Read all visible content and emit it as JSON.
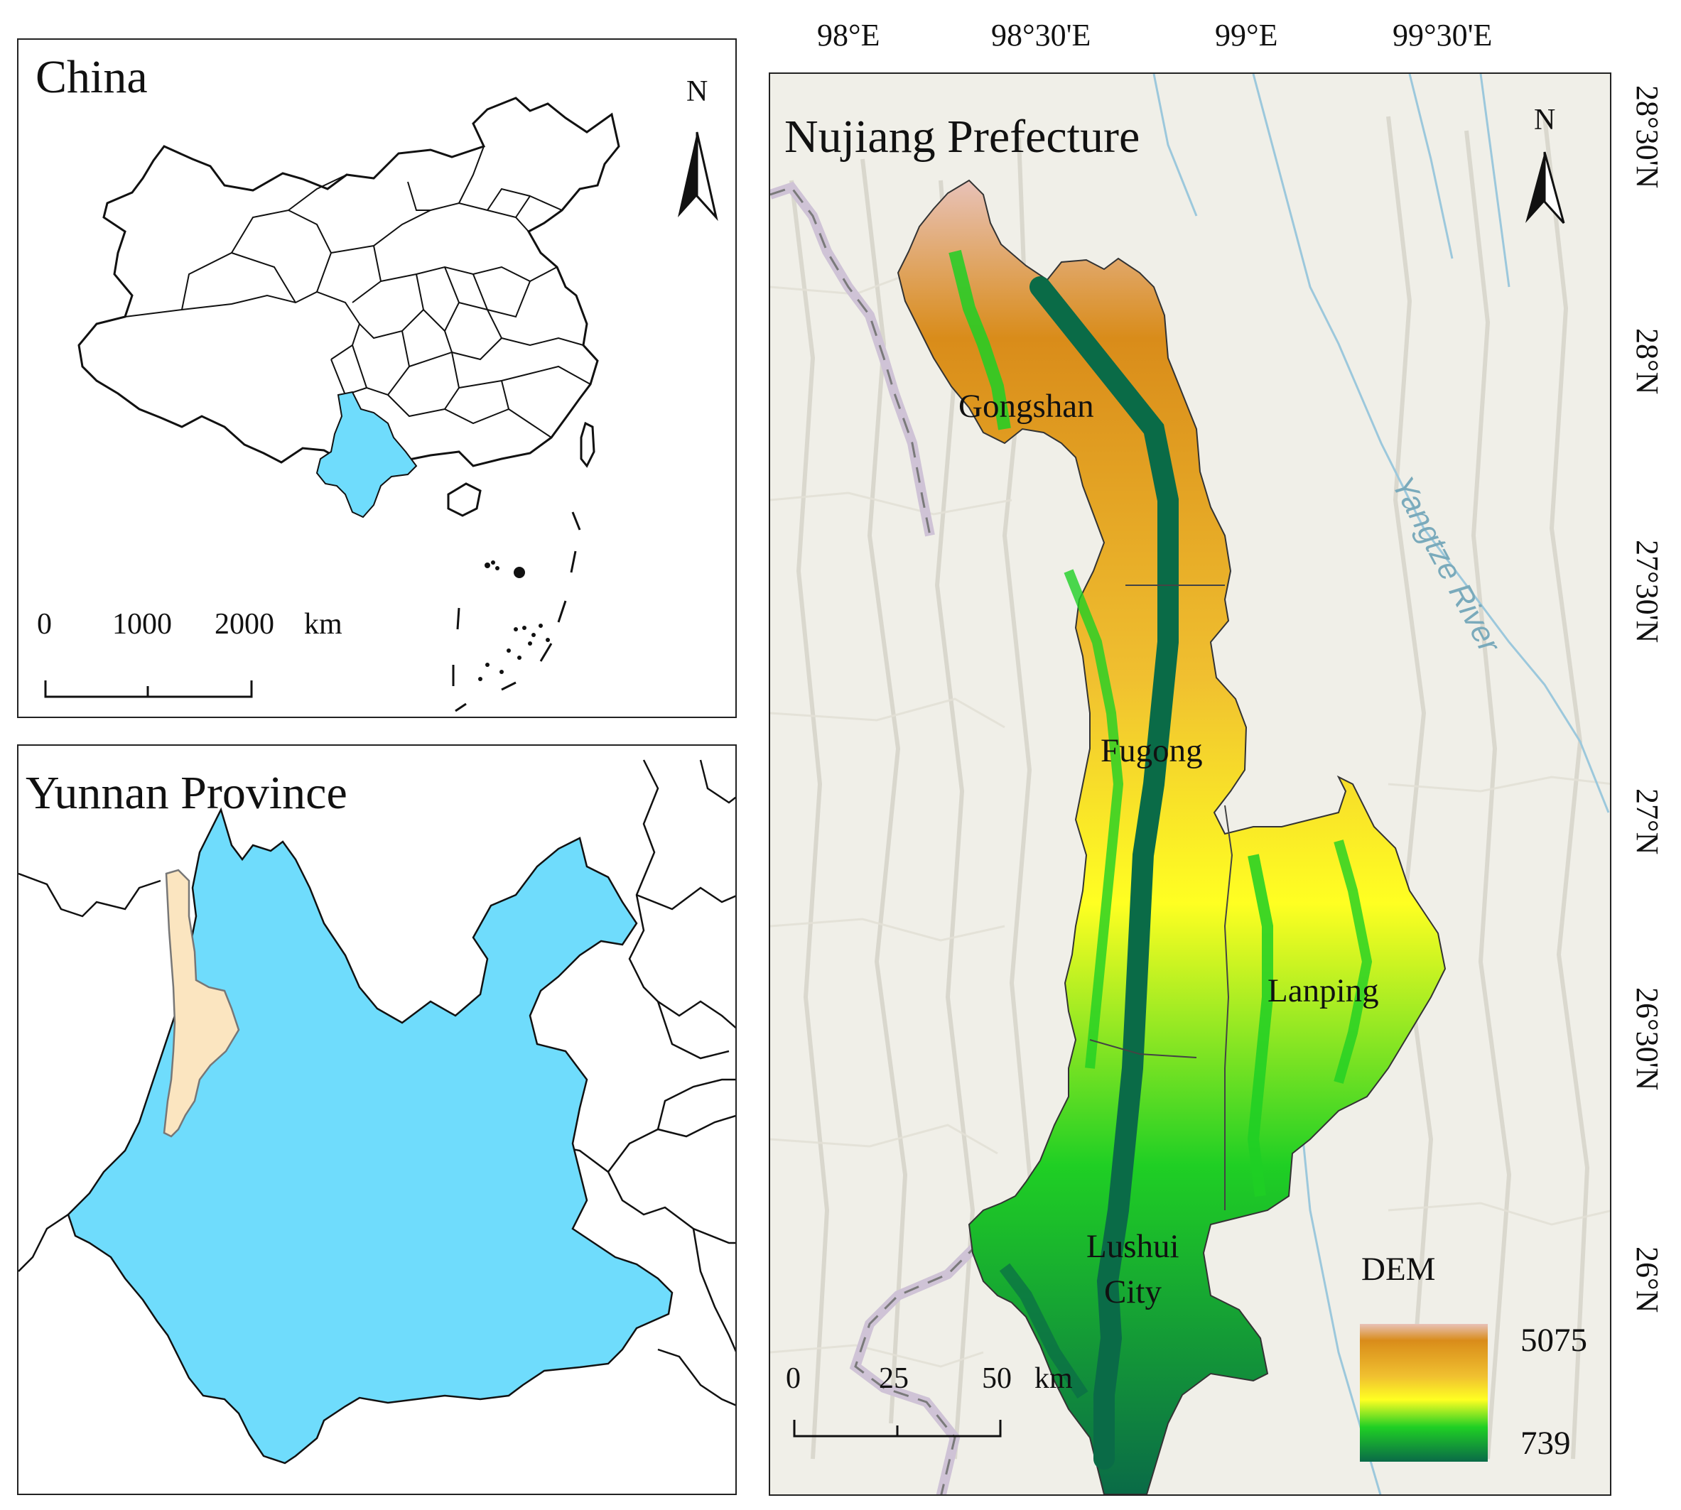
{
  "china": {
    "title": "China",
    "north": "N",
    "scale_labels": [
      "0",
      "1000",
      "2000",
      "km"
    ]
  },
  "yunnan": {
    "title": "Yunnan Province"
  },
  "nujiang": {
    "title": "Nujiang Prefecture",
    "north": "N",
    "counties": [
      "Gongshan",
      "Fugong",
      "Lanping",
      "Lushui",
      "City"
    ],
    "river": "Yangtze River",
    "scale_labels": [
      "0",
      "25",
      "50",
      "km"
    ],
    "legend": {
      "title": "DEM",
      "max": "5075",
      "min": "739"
    },
    "lon_ticks": [
      "98°E",
      "98°30'E",
      "99°E",
      "99°30'E"
    ],
    "lat_ticks": [
      "28°30'N",
      "28°N",
      "27°30'N",
      "27°N",
      "26°30'N",
      "26°N"
    ]
  },
  "colors": {
    "yunnan_fill": "#6fdcfc",
    "nujiang_fill": "#fbe5c0",
    "dem_high": "#e8c2b8",
    "dem_orange": "#d98c1a",
    "dem_yellow": "#ffff22",
    "dem_green": "#1fcf24",
    "dem_low": "#0a6b47",
    "river": "#9cc8dc"
  }
}
